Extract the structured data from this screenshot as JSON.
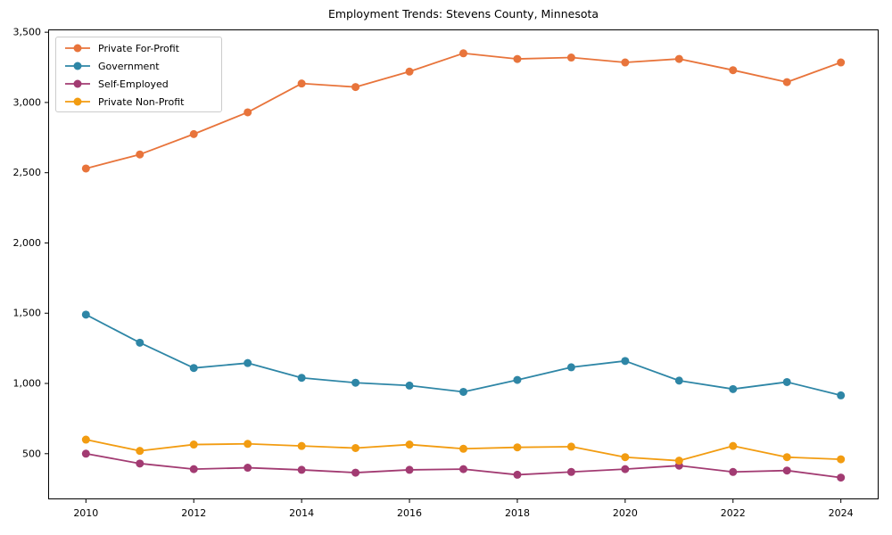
{
  "figure": {
    "title": "Employment Trends: Stevens County, Minnesota"
  },
  "chart_data": {
    "type": "line",
    "title": "Employment Trends: Stevens County, Minnesota",
    "xlabel": "",
    "ylabel": "",
    "x": [
      2010,
      2011,
      2012,
      2013,
      2014,
      2015,
      2016,
      2017,
      2018,
      2019,
      2020,
      2021,
      2022,
      2023,
      2024
    ],
    "series": [
      {
        "name": "Private For-Profit",
        "color": "#E8743B",
        "values": [
          2530,
          2630,
          2775,
          2930,
          3135,
          3110,
          3220,
          3350,
          3310,
          3320,
          3285,
          3310,
          3230,
          3145,
          3285
        ]
      },
      {
        "name": "Government",
        "color": "#2E86A6",
        "values": [
          1490,
          1290,
          1110,
          1145,
          1040,
          1005,
          985,
          940,
          1025,
          1115,
          1160,
          1020,
          960,
          1010,
          915
        ]
      },
      {
        "name": "Self-Employed",
        "color": "#A23B72",
        "values": [
          500,
          430,
          390,
          400,
          385,
          365,
          385,
          390,
          350,
          370,
          390,
          415,
          370,
          380,
          330
        ]
      },
      {
        "name": "Private Non-Profit",
        "color": "#F29C11",
        "values": [
          600,
          520,
          565,
          570,
          555,
          540,
          565,
          535,
          545,
          550,
          475,
          450,
          555,
          475,
          460
        ]
      }
    ],
    "xlim": [
      2009.3,
      2024.7
    ],
    "ylim": [
      175,
      3520
    ],
    "xticks": [
      2010,
      2012,
      2014,
      2016,
      2018,
      2020,
      2022,
      2024
    ],
    "yticks": [
      500,
      1000,
      1500,
      2000,
      2500,
      3000,
      3500
    ],
    "grid": false,
    "legend_position": "upper-left",
    "background_color": "#ffffff",
    "axis_color": "#000000",
    "marker": "circle",
    "marker_radius": 4.5,
    "line_width": 1.8
  }
}
